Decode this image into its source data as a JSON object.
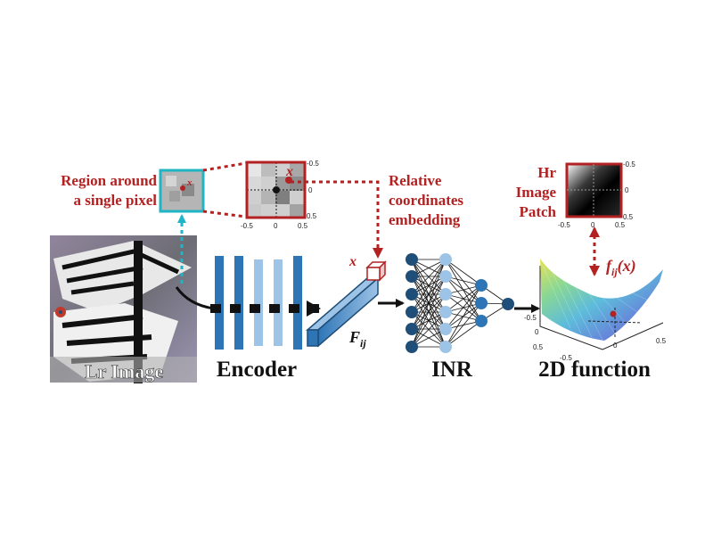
{
  "colors": {
    "accent_red": "#b22222",
    "cyan": "#1fb5c4",
    "encoder_dark": "#2e75b6",
    "encoder_light": "#9dc3e6",
    "inr_dark": "#1f4e79",
    "inr_mid": "#2e75b6",
    "inr_light": "#9dc3e6"
  },
  "labels": {
    "lr_image": "Lr Image",
    "encoder": "Encoder",
    "inr": "INR",
    "function_2d": "2D function",
    "region_line1": "Region around",
    "region_line2": "a single pixel",
    "relcoord_line1": "Relative",
    "relcoord_line2": "coordinates",
    "relcoord_line3": "embedding",
    "hr_line1": "Hr",
    "hr_line2": "Image",
    "hr_line3": "Patch"
  },
  "math": {
    "x_patch": "x",
    "x_cube": "x",
    "feature_base": "F",
    "feature_sub": "ij",
    "func_base": "f",
    "func_sub": "ij",
    "func_arg": "(x)"
  },
  "ticks": {
    "lr_patch_right_top": "-0.5",
    "lr_patch_right_mid": "0",
    "lr_patch_right_bottom": "0.5",
    "lr_patch_bottom_left": "-0.5",
    "lr_patch_bottom_mid": "0",
    "lr_patch_bottom_right": "0.5",
    "hr_patch_right_top": "-0.5",
    "hr_patch_right_mid": "0",
    "hr_patch_right_bottom": "0.5",
    "hr_patch_bottom_left": "-0.5",
    "hr_patch_bottom_mid": "0",
    "hr_patch_bottom_right": "0.5",
    "surface_left_axis_top": "-0.5",
    "surface_left_axis_mid": "0",
    "surface_left_axis_bottom": "0.5",
    "surface_bottom_axis_left": "-0.5",
    "surface_bottom_axis_mid": "0",
    "surface_bottom_axis_right": "0.5"
  }
}
